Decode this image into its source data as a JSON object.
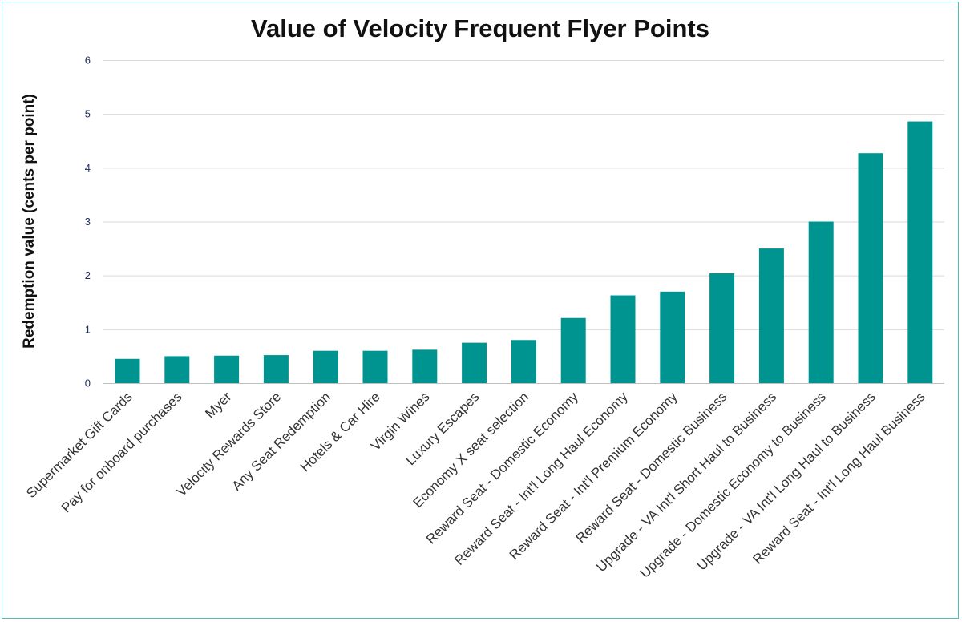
{
  "chart_data": {
    "type": "bar",
    "title": "Value of Velocity Frequent Flyer Points",
    "xlabel": "",
    "ylabel": "Redemption value (cents per point)",
    "ylim": [
      0,
      6
    ],
    "yticks": [
      "0",
      "1",
      "2",
      "3",
      "4",
      "5",
      "6"
    ],
    "grid": true,
    "bar_color": "#009490",
    "categories": [
      "Supermarket Gift Cards",
      "Pay for onboard purchases",
      "Myer",
      "Velocity Rewards Store",
      "Any Seat Redemption",
      "Hotels & Car Hire",
      "Virgin Wines",
      "Luxury Escapes",
      "Economy X seat selection",
      "Reward Seat - Domestic Economy",
      "Reward Seat - Int'l Long Haul Economy",
      "Reward Seat - Int'l Premium Economy",
      "Reward Seat - Domestic Business",
      "Upgrade - VA Int'l Short Haul to Business",
      "Upgrade - Domestic Economy to Business",
      "Upgrade - VA Int'l Long Haul to Business",
      "Reward Seat - Int'l Long Haul Business"
    ],
    "values": [
      0.45,
      0.5,
      0.51,
      0.52,
      0.6,
      0.6,
      0.62,
      0.75,
      0.8,
      1.21,
      1.63,
      1.7,
      2.04,
      2.5,
      3.0,
      4.27,
      4.86
    ]
  }
}
